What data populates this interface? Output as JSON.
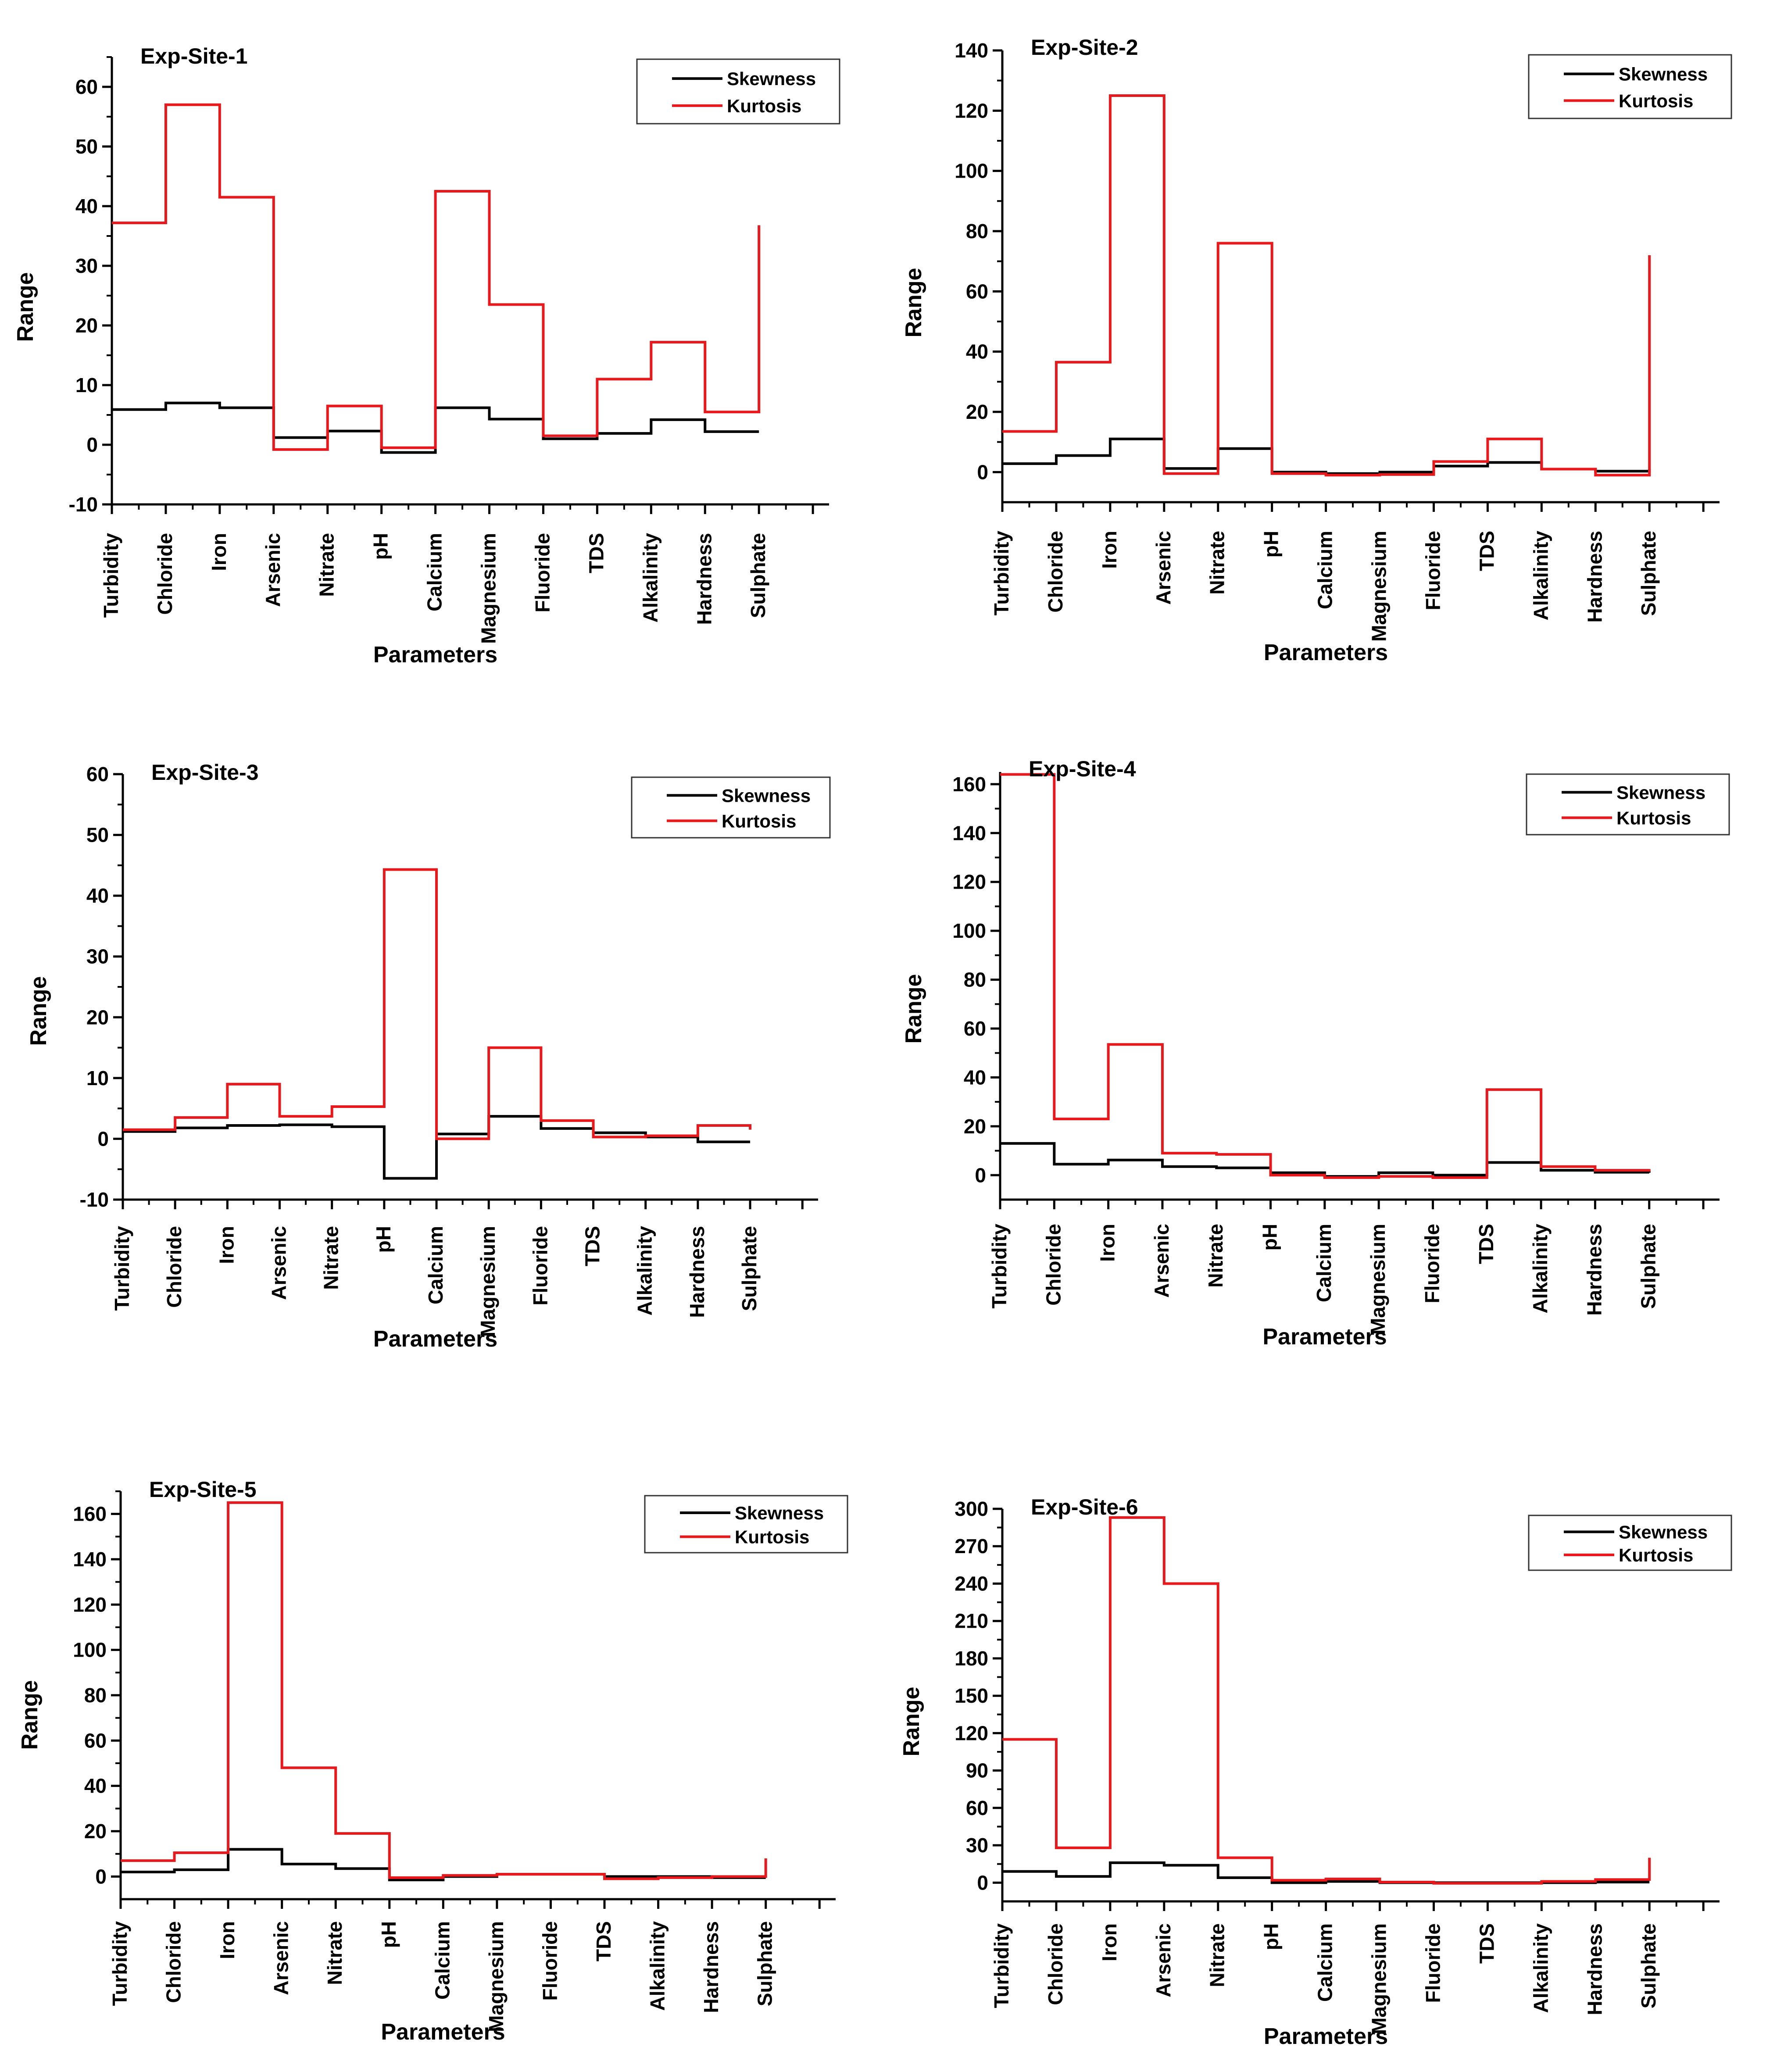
{
  "chart_data": [
    {
      "type": "line",
      "step": true,
      "title": "Exp-Site-1",
      "xlabel": "Parameters",
      "ylabel": "Range",
      "categories": [
        "Turbidity",
        "Chloride",
        "Iron",
        "Arsenic",
        "Nitrate",
        "pH",
        "Calcium",
        "Magnesium",
        "Fluoride",
        "TDS",
        "Alkalinity",
        "Hardness",
        "Sulphate"
      ],
      "ylim": [
        -10,
        65
      ],
      "yticks": [
        -10,
        0,
        10,
        20,
        30,
        40,
        50,
        60
      ],
      "legend_position": "top-right",
      "series": [
        {
          "name": "Skewness",
          "color": "#000000",
          "values": [
            5.9,
            7.0,
            6.2,
            1.2,
            2.3,
            -1.3,
            6.2,
            4.3,
            1.0,
            1.9,
            4.2,
            2.2,
            2.2
          ]
        },
        {
          "name": "Kurtosis",
          "color": "#e8191c",
          "values": [
            37.2,
            57.0,
            41.5,
            -0.8,
            6.5,
            -0.5,
            42.5,
            23.5,
            1.5,
            11.0,
            17.2,
            5.5,
            36.8
          ]
        }
      ]
    },
    {
      "type": "line",
      "step": true,
      "title": "Exp-Site-2",
      "xlabel": "Parameters",
      "ylabel": "Range",
      "categories": [
        "Turbidity",
        "Chloride",
        "Iron",
        "Arsenic",
        "Nitrate",
        "pH",
        "Calcium",
        "Magnesium",
        "Fluoride",
        "TDS",
        "Alkalinity",
        "Hardness",
        "Sulphate"
      ],
      "ylim": [
        -10,
        140
      ],
      "yticks": [
        0,
        20,
        40,
        60,
        80,
        100,
        120,
        140
      ],
      "legend_position": "top-right",
      "series": [
        {
          "name": "Skewness",
          "color": "#000000",
          "values": [
            2.8,
            5.5,
            11.0,
            1.2,
            7.8,
            0.0,
            -0.5,
            0.0,
            2.0,
            3.2,
            1.0,
            0.3,
            1.0
          ]
        },
        {
          "name": "Kurtosis",
          "color": "#e8191c",
          "values": [
            13.5,
            36.5,
            125.0,
            -0.5,
            76.0,
            -0.5,
            -1.0,
            -0.8,
            3.5,
            11.0,
            1.0,
            -1.0,
            72.0
          ]
        }
      ]
    },
    {
      "type": "line",
      "step": true,
      "title": "Exp-Site-3",
      "xlabel": "Parameters",
      "ylabel": "Range",
      "categories": [
        "Turbidity",
        "Chloride",
        "Iron",
        "Arsenic",
        "Nitrate",
        "pH",
        "Calcium",
        "Magnesium",
        "Fluoride",
        "TDS",
        "Alkalinity",
        "Hardness",
        "Sulphate"
      ],
      "ylim": [
        -10,
        60
      ],
      "yticks": [
        -10,
        0,
        10,
        20,
        30,
        40,
        50,
        60
      ],
      "legend_position": "top-right",
      "series": [
        {
          "name": "Skewness",
          "color": "#000000",
          "values": [
            1.2,
            1.8,
            2.2,
            2.3,
            2.0,
            -6.5,
            0.8,
            3.7,
            1.7,
            1.0,
            0.3,
            -0.5,
            -0.5
          ]
        },
        {
          "name": "Kurtosis",
          "color": "#e8191c",
          "values": [
            1.5,
            3.5,
            9.0,
            3.7,
            5.3,
            44.3,
            0.0,
            15.0,
            3.0,
            0.3,
            0.5,
            2.2,
            1.5
          ]
        }
      ]
    },
    {
      "type": "line",
      "step": true,
      "title": "Exp-Site-4",
      "xlabel": "Parameters",
      "ylabel": "Range",
      "categories": [
        "Turbidity",
        "Chloride",
        "Iron",
        "Arsenic",
        "Nitrate",
        "pH",
        "Calcium",
        "Magnesium",
        "Fluoride",
        "TDS",
        "Alkalinity",
        "Hardness",
        "Sulphate"
      ],
      "ylim": [
        -10,
        165
      ],
      "yticks": [
        0,
        20,
        40,
        60,
        80,
        100,
        120,
        140,
        160
      ],
      "legend_position": "top-right",
      "series": [
        {
          "name": "Skewness",
          "color": "#000000",
          "values": [
            13.0,
            4.5,
            6.2,
            3.5,
            3.0,
            1.0,
            -0.5,
            1.0,
            0.0,
            5.2,
            2.0,
            1.2,
            1.0
          ]
        },
        {
          "name": "Kurtosis",
          "color": "#e8191c",
          "values": [
            164.0,
            23.0,
            53.5,
            9.0,
            8.5,
            0.0,
            -1.0,
            -0.5,
            -1.0,
            35.0,
            3.5,
            2.0,
            2.5
          ]
        }
      ]
    },
    {
      "type": "line",
      "step": true,
      "title": "Exp-Site-5",
      "xlabel": "Parameters",
      "ylabel": "Range",
      "categories": [
        "Turbidity",
        "Chloride",
        "Iron",
        "Arsenic",
        "Nitrate",
        "pH",
        "Calcium",
        "Magnesium",
        "Fluoride",
        "TDS",
        "Alkalinity",
        "Hardness",
        "Sulphate"
      ],
      "ylim": [
        -10,
        170
      ],
      "yticks": [
        0,
        20,
        40,
        60,
        80,
        100,
        120,
        140,
        160
      ],
      "legend_position": "top-right",
      "series": [
        {
          "name": "Skewness",
          "color": "#000000",
          "values": [
            2.0,
            3.0,
            12.0,
            5.5,
            3.5,
            -1.5,
            0.0,
            1.0,
            1.0,
            0.0,
            0.0,
            -0.5,
            -0.5
          ]
        },
        {
          "name": "Kurtosis",
          "color": "#e8191c",
          "values": [
            7.0,
            10.5,
            165.0,
            48.0,
            19.0,
            -0.5,
            0.5,
            1.0,
            1.0,
            -1.0,
            -0.5,
            0.0,
            8.0
          ]
        }
      ]
    },
    {
      "type": "line",
      "step": true,
      "title": "Exp-Site-6",
      "xlabel": "Parameters",
      "ylabel": "Range",
      "categories": [
        "Turbidity",
        "Chloride",
        "Iron",
        "Arsenic",
        "Nitrate",
        "pH",
        "Calcium",
        "Magnesium",
        "Fluoride",
        "TDS",
        "Alkalinity",
        "Hardness",
        "Sulphate"
      ],
      "ylim": [
        -15,
        300
      ],
      "yticks": [
        0,
        30,
        60,
        90,
        120,
        150,
        180,
        210,
        240,
        270,
        300
      ],
      "legend_position": "top-right",
      "series": [
        {
          "name": "Skewness",
          "color": "#000000",
          "values": [
            9.0,
            5.0,
            16.0,
            14.0,
            4.0,
            0.0,
            1.0,
            0.0,
            0.0,
            0.0,
            0.0,
            0.5,
            0.5
          ]
        },
        {
          "name": "Kurtosis",
          "color": "#e8191c",
          "values": [
            115.0,
            28.0,
            293.0,
            240.0,
            20.0,
            2.0,
            3.0,
            0.5,
            -0.5,
            -0.5,
            1.0,
            2.5,
            20.0
          ]
        }
      ]
    }
  ]
}
